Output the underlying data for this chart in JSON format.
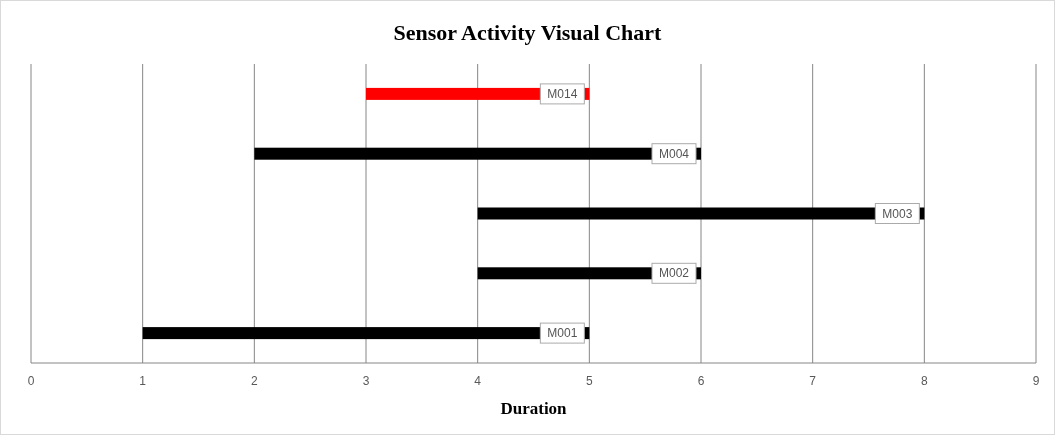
{
  "chart_data": {
    "type": "bar",
    "orientation": "horizontal",
    "title": "Sensor Activity Visual Chart",
    "xlabel": "Duration",
    "categories": [
      "M014",
      "M004",
      "M003",
      "M002",
      "M001"
    ],
    "base": [
      3,
      2,
      4,
      4,
      1
    ],
    "values": [
      2,
      4,
      4,
      2,
      4
    ],
    "colors": [
      "#ff0000",
      "#000000",
      "#000000",
      "#000000",
      "#000000"
    ],
    "xlim": [
      0,
      9
    ],
    "xticks": [
      0,
      1,
      2,
      3,
      4,
      5,
      6,
      7,
      8,
      9
    ],
    "grid": "x"
  }
}
